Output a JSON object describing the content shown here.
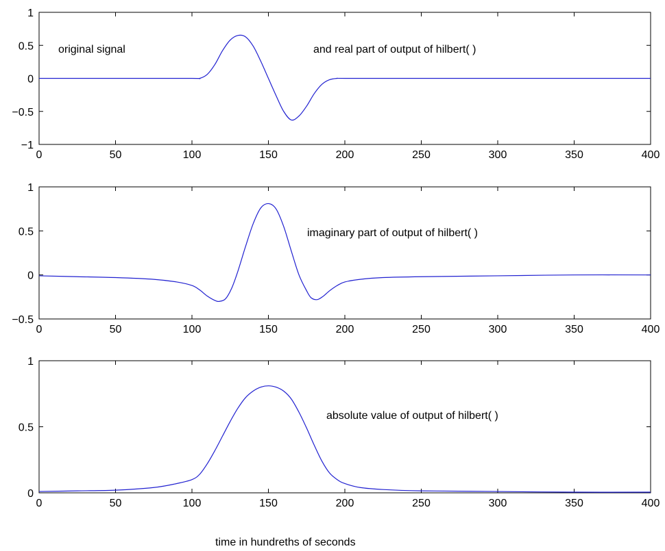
{
  "colors": {
    "line": "#2020d0",
    "axes": "#000000",
    "background": "#ffffff"
  },
  "xlabel": "time in hundreths of seconds",
  "chart_data": [
    {
      "type": "line",
      "title": "",
      "xlim": [
        0,
        400
      ],
      "ylim": [
        -1,
        1
      ],
      "xticks": [
        0,
        50,
        100,
        150,
        200,
        250,
        300,
        350,
        400
      ],
      "yticks": [
        -1,
        -0.5,
        0,
        0.5,
        1
      ],
      "ytick_labels": [
        "−1",
        "−0.5",
        "0",
        "0.5",
        "1"
      ],
      "annotations": [
        {
          "text": "original signal"
        },
        {
          "text": "and real part of output of  hilbert( )"
        }
      ],
      "series": [
        {
          "x": [
            0,
            50,
            100,
            105,
            110,
            115,
            120,
            125,
            130,
            135,
            140,
            145,
            150,
            155,
            160,
            165,
            170,
            175,
            180,
            185,
            190,
            195,
            200,
            250,
            300,
            350,
            400
          ],
          "y": [
            0,
            0,
            0,
            0.0,
            0.06,
            0.21,
            0.42,
            0.58,
            0.65,
            0.63,
            0.49,
            0.26,
            0.0,
            -0.26,
            -0.5,
            -0.63,
            -0.57,
            -0.42,
            -0.23,
            -0.09,
            -0.02,
            0.0,
            0,
            0,
            0,
            0,
            0
          ]
        }
      ]
    },
    {
      "type": "line",
      "title": "",
      "xlim": [
        0,
        400
      ],
      "ylim": [
        -0.5,
        1
      ],
      "xticks": [
        0,
        50,
        100,
        150,
        200,
        250,
        300,
        350,
        400
      ],
      "yticks": [
        -0.5,
        0,
        0.5,
        1
      ],
      "ytick_labels": [
        "−0.5",
        "0",
        "0.5",
        "1"
      ],
      "annotations": [
        {
          "text": "imaginary part of output of hilbert( )"
        }
      ],
      "series": [
        {
          "x": [
            0,
            25,
            50,
            75,
            90,
            100,
            105,
            110,
            115,
            118,
            122,
            126,
            130,
            135,
            140,
            145,
            150,
            155,
            160,
            165,
            170,
            175,
            178,
            182,
            186,
            190,
            195,
            200,
            210,
            225,
            250,
            300,
            350,
            400
          ],
          "y": [
            -0.01,
            -0.02,
            -0.03,
            -0.05,
            -0.08,
            -0.12,
            -0.17,
            -0.24,
            -0.29,
            -0.3,
            -0.27,
            -0.15,
            0.04,
            0.32,
            0.58,
            0.76,
            0.81,
            0.75,
            0.55,
            0.27,
            0.0,
            -0.18,
            -0.26,
            -0.28,
            -0.24,
            -0.18,
            -0.12,
            -0.08,
            -0.05,
            -0.03,
            -0.02,
            -0.01,
            0.0,
            0.0
          ]
        }
      ]
    },
    {
      "type": "line",
      "title": "",
      "xlim": [
        0,
        400
      ],
      "ylim": [
        0,
        1
      ],
      "xticks": [
        0,
        50,
        100,
        150,
        200,
        250,
        300,
        350,
        400
      ],
      "yticks": [
        0,
        0.5,
        1
      ],
      "ytick_labels": [
        "0",
        "0.5",
        "1"
      ],
      "annotations": [
        {
          "text": "absolute value of output of hilbert( )"
        }
      ],
      "series": [
        {
          "x": [
            0,
            25,
            50,
            75,
            90,
            100,
            105,
            110,
            115,
            120,
            125,
            130,
            135,
            140,
            145,
            150,
            155,
            160,
            165,
            170,
            175,
            180,
            185,
            190,
            195,
            200,
            210,
            225,
            250,
            300,
            350,
            400
          ],
          "y": [
            0.01,
            0.015,
            0.02,
            0.04,
            0.07,
            0.1,
            0.14,
            0.22,
            0.32,
            0.43,
            0.54,
            0.64,
            0.72,
            0.77,
            0.8,
            0.81,
            0.8,
            0.77,
            0.71,
            0.61,
            0.49,
            0.36,
            0.24,
            0.15,
            0.1,
            0.07,
            0.04,
            0.025,
            0.015,
            0.01,
            0.005,
            0.005
          ]
        }
      ]
    }
  ]
}
